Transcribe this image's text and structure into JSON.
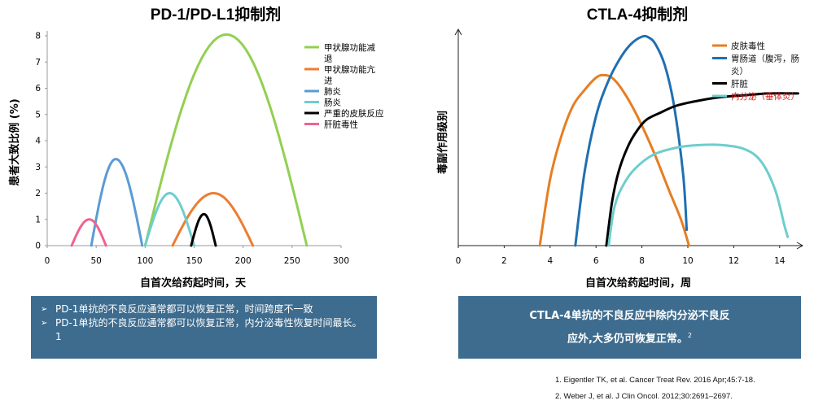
{
  "chart_data": [
    {
      "type": "area",
      "title": "PD-1/PD-L1抑制剂",
      "xlabel": "自首次给药起时间，天",
      "ylabel": "患者大致比例 (%)",
      "xlim": [
        0,
        300
      ],
      "ylim": [
        0,
        8
      ],
      "xticks": [
        0,
        50,
        100,
        150,
        200,
        250,
        300
      ],
      "yticks": [
        0,
        1,
        2,
        3,
        4,
        5,
        6,
        7,
        8
      ],
      "series": [
        {
          "name": "甲状腺功能减退",
          "color": "#92d050",
          "start": 100,
          "peak": 183,
          "end": 265,
          "peak_value": 8.05
        },
        {
          "name": "甲状腺功能亢进",
          "color": "#ed7d31",
          "start": 128,
          "peak": 170,
          "end": 210,
          "peak_value": 2.0
        },
        {
          "name": "肺炎",
          "color": "#5b9bd5",
          "start": 45,
          "peak": 70,
          "end": 97,
          "peak_value": 3.3
        },
        {
          "name": "肠炎",
          "color": "#6ecdcd",
          "start": 100,
          "peak": 125,
          "end": 150,
          "peak_value": 2.0
        },
        {
          "name": "严重的皮肤反应",
          "color": "#000000",
          "start": 147,
          "peak": 160,
          "end": 172,
          "peak_value": 1.2
        },
        {
          "name": "肝脏毒性",
          "color": "#f06292",
          "start": 25,
          "peak": 43,
          "end": 60,
          "peak_value": 1.0
        }
      ],
      "legend_position": "top-right"
    },
    {
      "type": "line",
      "title": "CTLA-4抑制剂",
      "xlabel": "自首次给药起时间，周",
      "ylabel": "毒副作用级别",
      "xlim": [
        0,
        15
      ],
      "xticks": [
        0,
        2,
        4,
        6,
        8,
        10,
        12,
        14
      ],
      "y_ticks_shown": false,
      "series": [
        {
          "name": "皮肤毒性",
          "color": "#e67e22",
          "x": [
            3.55,
            4.0,
            4.5,
            5.0,
            5.5,
            6.0,
            6.3,
            6.7,
            7.2,
            7.8,
            8.5,
            9.2,
            9.7,
            10.05
          ],
          "y": [
            0,
            0.38,
            0.63,
            0.8,
            0.89,
            0.96,
            0.975,
            0.96,
            0.88,
            0.74,
            0.54,
            0.31,
            0.15,
            0
          ]
        },
        {
          "name": "胃肠道（腹泻，肠炎）",
          "color": "#1f6fb2",
          "x": [
            5.1,
            5.5,
            6.0,
            6.5,
            7.0,
            7.5,
            8.0,
            8.3,
            8.6,
            9.0,
            9.4,
            9.8,
            9.95
          ],
          "y": [
            0,
            0.42,
            0.74,
            0.93,
            1.06,
            1.15,
            1.195,
            1.19,
            1.15,
            1.03,
            0.8,
            0.4,
            0.09
          ]
        },
        {
          "name": "肝脏",
          "color": "#000000",
          "x": [
            6.45,
            6.7,
            7.0,
            7.4,
            7.8,
            8.2,
            8.8,
            9.5,
            10.5,
            11.5,
            12.5,
            13.5,
            14.8
          ],
          "y": [
            0,
            0.25,
            0.43,
            0.57,
            0.66,
            0.72,
            0.76,
            0.8,
            0.83,
            0.85,
            0.86,
            0.87,
            0.87
          ]
        },
        {
          "name": "内分泌（垂体炎）",
          "color": "#6ecdcd",
          "x": [
            6.55,
            6.8,
            7.2,
            7.7,
            8.5,
            9.5,
            10.5,
            11.5,
            12.5,
            13.2,
            13.8,
            14.2,
            14.35
          ],
          "y": [
            0,
            0.22,
            0.35,
            0.44,
            0.52,
            0.56,
            0.575,
            0.575,
            0.55,
            0.48,
            0.32,
            0.12,
            0.05
          ]
        }
      ],
      "legend_position": "top-right"
    }
  ],
  "left_chart": {
    "title": "PD-1/PD-L1抑制剂",
    "ylabel": "患者大致比例 (%)",
    "xlabel": "自首次给药起时间，天",
    "legend_lines": [
      {
        "text": "甲状腺功能减",
        "color": "#92d050"
      },
      {
        "text": "退",
        "color": null
      },
      {
        "text": "甲状腺功能亢",
        "color": "#ed7d31"
      },
      {
        "text": "进",
        "color": null
      },
      {
        "text": "肺炎",
        "color": "#5b9bd5"
      },
      {
        "text": "肠炎",
        "color": "#6ecdcd"
      },
      {
        "text": "严重的皮肤反应",
        "color": "#000000"
      },
      {
        "text": "肝脏毒性",
        "color": "#f06292"
      }
    ]
  },
  "right_chart": {
    "title": "CTLA-4抑制剂",
    "ylabel": "毒副作用级别",
    "xlabel": "自首次给药起时间，周",
    "legend_lines": [
      {
        "text": "皮肤毒性",
        "color": "#e67e22",
        "textColor": "#111111"
      },
      {
        "text": "胃肠道（腹泻，肠",
        "color": "#1f6fb2",
        "textColor": "#111111"
      },
      {
        "text": "炎）",
        "color": null,
        "textColor": "#111111"
      },
      {
        "text": "肝脏",
        "color": "#000000",
        "textColor": "#111111"
      },
      {
        "text": "内分泌（垂体炎）",
        "color": "#6ecdcd",
        "textColor": "#e02020"
      }
    ]
  },
  "box_left": {
    "bullet_symbol": "➢",
    "bullets": [
      "PD-1单抗的不良反应通常都可以恢复正常，时间跨度不一致",
      "PD-1单抗的不良反应通常都可以恢复正常，内分泌毒性恢复时间最长。1"
    ]
  },
  "box_right": {
    "line1": "CTLA-4单抗的不良反应中除内分泌不良反",
    "line2": "应外,大多仍可恢复正常。",
    "sup": "2"
  },
  "references": [
    "1. Eigentler TK, et al. Cancer Treat Rev. 2016 Apr;45:7-18.",
    "2. Weber J, et al. J Clin Oncol. 2012;30:2691–2697."
  ]
}
